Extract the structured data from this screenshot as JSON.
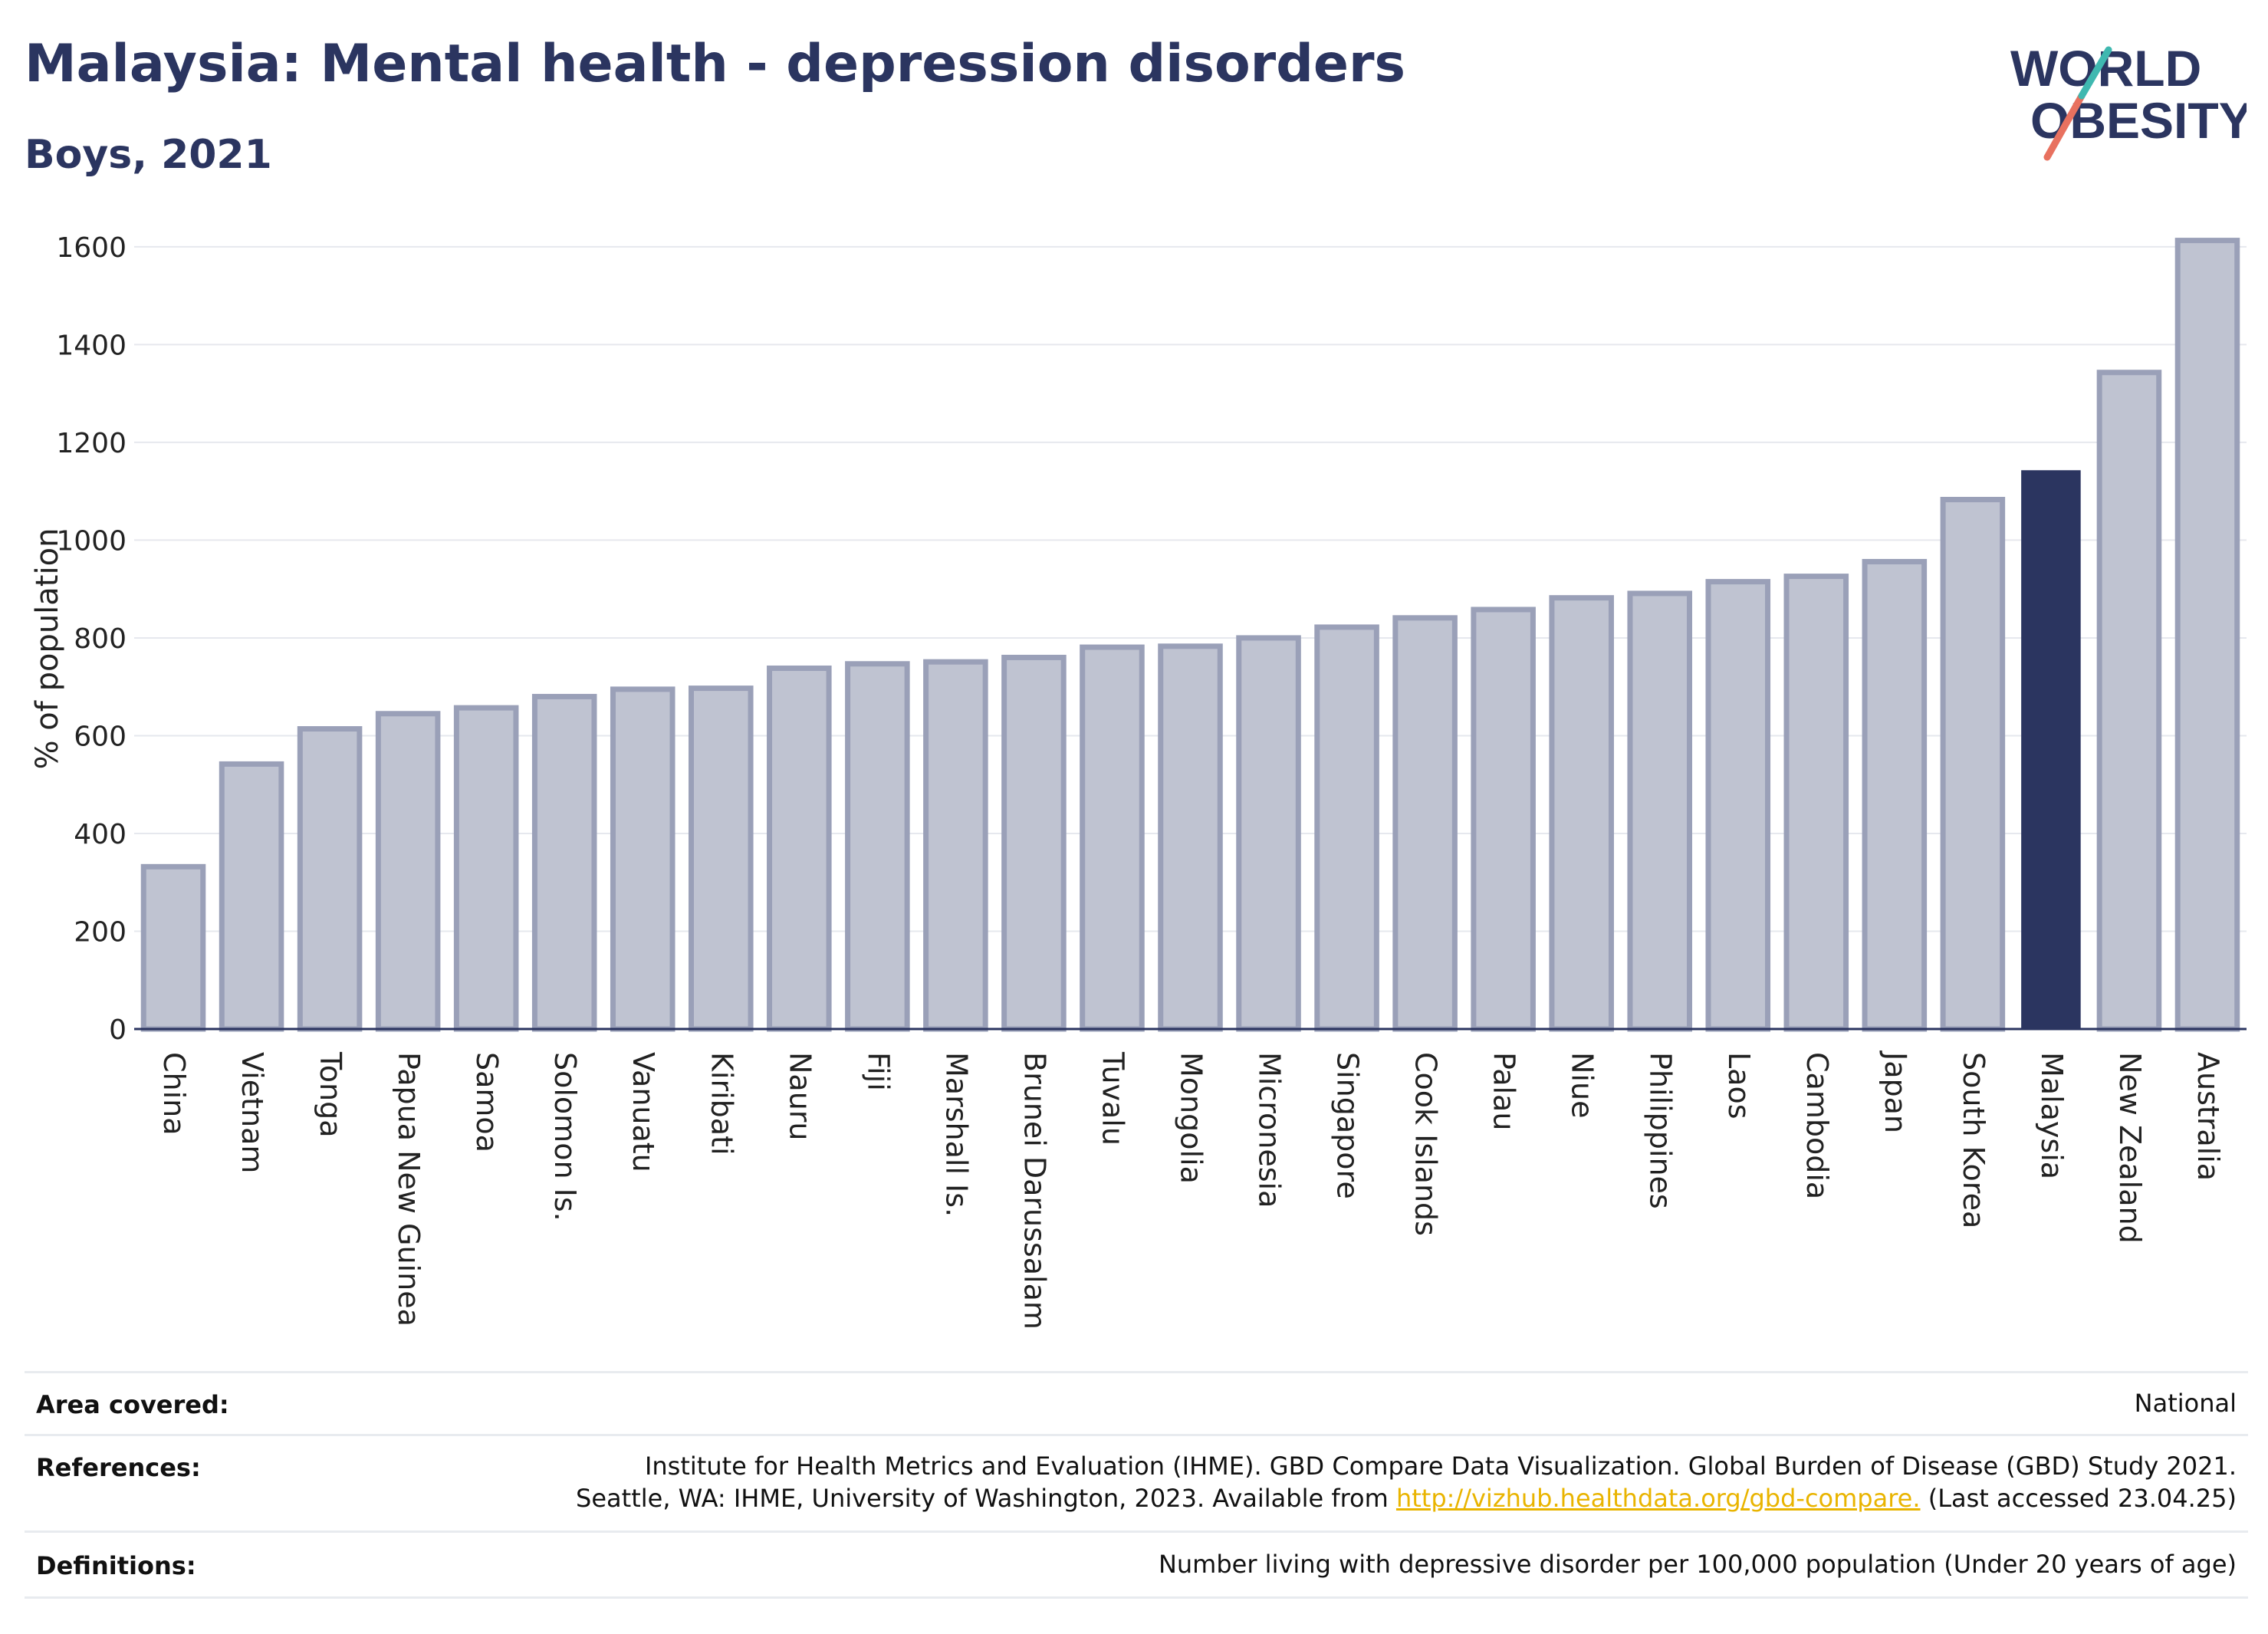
{
  "title": "Malaysia: Mental health - depression disorders",
  "subtitle": "Boys, 2021",
  "logo": {
    "line1": "WORLD",
    "line2": "OBESITY"
  },
  "colors": {
    "bar": "#bfc3d1",
    "bar_border": "#9aa0b8",
    "highlight": "#2b3560",
    "text": "#2b3560"
  },
  "chart_data": {
    "type": "bar",
    "ylabel": "% of population",
    "xlabel": "",
    "ylim": [
      0,
      1650
    ],
    "yticks": [
      0,
      200,
      400,
      600,
      800,
      1000,
      1200,
      1400,
      1600
    ],
    "grid": true,
    "categories": [
      "China",
      "Vietnam",
      "Tonga",
      "Papua New Guinea",
      "Samoa",
      "Solomon Is.",
      "Vanuatu",
      "Kiribati",
      "Nauru",
      "Fiji",
      "Marshall Is.",
      "Brunei Darussalam",
      "Tuvalu",
      "Mongolia",
      "Micronesia",
      "Singapore",
      "Cook Islands",
      "Palau",
      "Niue",
      "Philippines",
      "Laos",
      "Cambodia",
      "Japan",
      "South Korea",
      "Malaysia",
      "New Zealand",
      "Australia"
    ],
    "values": [
      332,
      542,
      614,
      645,
      657,
      680,
      695,
      697,
      738,
      747,
      751,
      760,
      781,
      783,
      800,
      822,
      841,
      858,
      882,
      891,
      915,
      926,
      956,
      1083,
      1143,
      1343,
      1613
    ],
    "highlight": "Malaysia"
  },
  "footer": {
    "area_label": "Area covered:",
    "area_value": "National",
    "references_label": "References:",
    "references_line1": "Institute for Health Metrics and Evaluation (IHME). GBD Compare Data Visualization. Global Burden of Disease (GBD) Study 2021.",
    "references_line2_pre": "Seattle, WA: IHME, University of Washington, 2023. Available from ",
    "references_link": "http://vizhub.healthdata.org/gbd-compare.",
    "references_line2_post": " (Last accessed 23.04.25)",
    "definitions_label": "Definitions:",
    "definitions_value": "Number living with depressive disorder per 100,000 population (Under 20 years of age)"
  }
}
